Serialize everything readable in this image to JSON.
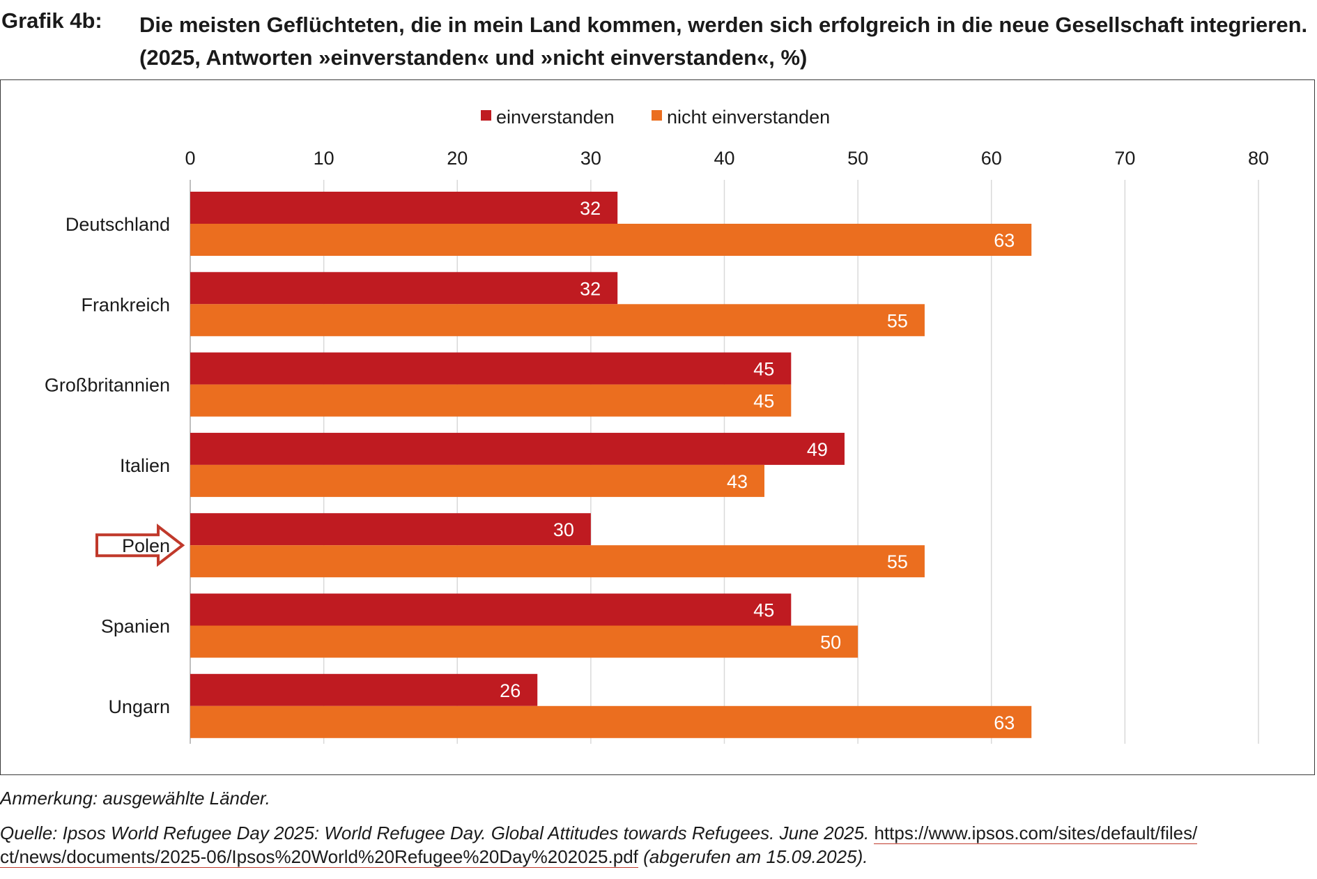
{
  "header": {
    "label": "Grafik 4b:",
    "text": "Die meisten Geflüchteten, die in mein Land kommen, werden sich erfolgreich in die neue Gesellschaft integrieren. (2025, Antworten »einverstanden« und »nicht einverstanden«, %)"
  },
  "chart_data": {
    "type": "bar",
    "orientation": "horizontal",
    "title": "Die meisten Geflüchteten, die in mein Land kommen, werden sich erfolgreich in die neue Gesellschaft integrieren. (2025, Antworten »einverstanden« und »nicht einverstanden«, %)",
    "categories": [
      "Deutschland",
      "Frankreich",
      "Großbritannien",
      "Italien",
      "Polen",
      "Spanien",
      "Ungarn"
    ],
    "series": [
      {
        "name": "einverstanden",
        "color": "#bf1b21",
        "values": [
          32,
          32,
          45,
          49,
          30,
          45,
          26
        ]
      },
      {
        "name": "nicht einverstanden",
        "color": "#eb6e1f",
        "values": [
          63,
          55,
          45,
          43,
          55,
          50,
          63
        ]
      }
    ],
    "xlim": [
      0,
      80
    ],
    "xticks": [
      0,
      10,
      20,
      30,
      40,
      50,
      60,
      70,
      80
    ],
    "grid": true,
    "legend": "top-center",
    "highlight": "Polen",
    "highlight_color": "#c0392b",
    "data_label_color": "#ffffff",
    "grid_color": "#d9d9d9"
  },
  "notes": {
    "remark": "Anmerkung: ausgewählte Länder.",
    "source_prefix": "Quelle: Ipsos World Refugee Day 2025: World Refugee Day. Global Attitudes towards Refugees. June 2025. ",
    "source_link_1": "https://www.ipsos.com/sites/default/files/",
    "source_link_2": "ct/news/documents/2025-06/Ipsos%20World%20Refugee%20Day%202025.pdf",
    "source_suffix": " (abgerufen am 15.09.2025)."
  }
}
